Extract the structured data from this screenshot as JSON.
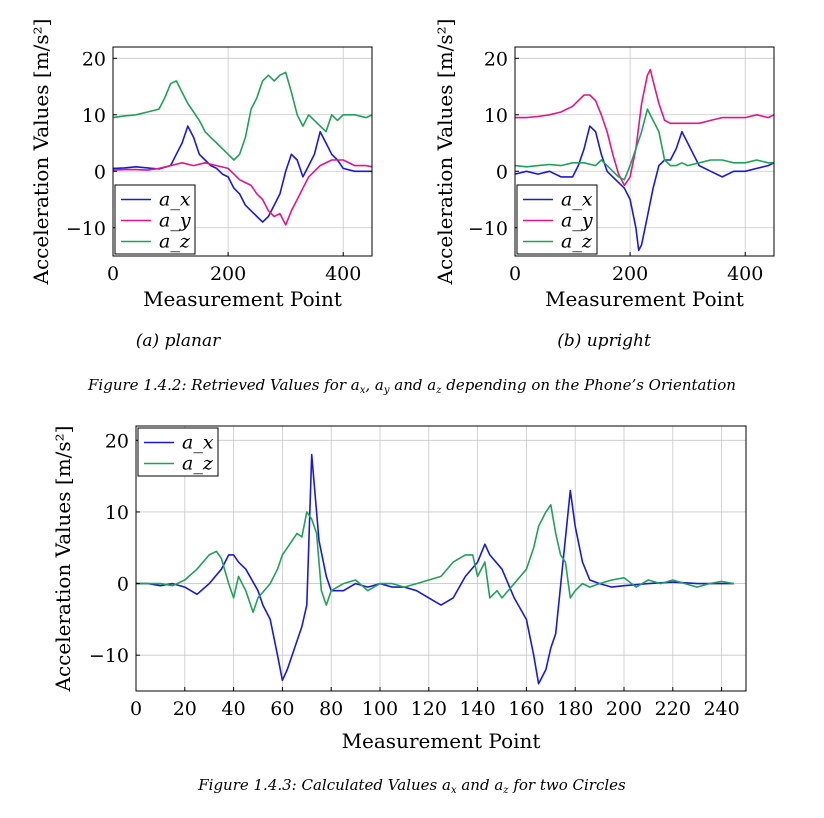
{
  "figures": {
    "fig1_caption_prefix": "Figure 1.4.2: ",
    "fig1_caption_text": "Retrieved Values for a",
    "fig1_caption_full": "Figure 1.4.2: Retrieved Values for a_x, a_y and a_z depending on the Phone's Orientation",
    "fig2_caption_full": "Figure 1.4.3: Calculated Values a_x and a_z for two Circles"
  },
  "colors": {
    "ax": "#1a1ad6",
    "ay": "#e0168a",
    "az": "#21a05a",
    "grid": "#c8c8c8"
  },
  "chart_data": [
    {
      "type": "line",
      "subcaption": "(a) planar",
      "xlabel": "Measurement Point",
      "ylabel": "Acceleration Values [m/s²]",
      "xlim": [
        0,
        450
      ],
      "ylim": [
        -15,
        22
      ],
      "xticks": [
        0,
        200,
        400
      ],
      "yticks": [
        -10,
        0,
        10,
        20
      ],
      "grid": true,
      "legend": "bottom-left",
      "series": [
        {
          "name": "a_x",
          "key": "ax",
          "x": [
            0,
            20,
            40,
            60,
            80,
            100,
            110,
            120,
            130,
            140,
            150,
            160,
            170,
            180,
            190,
            200,
            210,
            220,
            230,
            240,
            250,
            260,
            270,
            280,
            290,
            300,
            310,
            320,
            330,
            340,
            350,
            360,
            370,
            380,
            390,
            400,
            420,
            440,
            450
          ],
          "y": [
            0.5,
            0.6,
            0.8,
            0.6,
            0.4,
            1,
            3,
            5,
            8,
            6,
            3,
            2,
            1,
            0.5,
            -0.5,
            -1,
            -3,
            -4,
            -6,
            -7,
            -8,
            -9,
            -8,
            -6,
            -4,
            0,
            3,
            2,
            -1,
            1,
            3,
            7,
            5,
            3,
            2,
            0.5,
            0,
            0,
            0
          ]
        },
        {
          "name": "a_y",
          "key": "ay",
          "x": [
            0,
            20,
            40,
            60,
            80,
            100,
            120,
            140,
            160,
            180,
            200,
            210,
            220,
            230,
            240,
            250,
            260,
            270,
            280,
            290,
            300,
            310,
            320,
            330,
            340,
            350,
            360,
            380,
            400,
            420,
            440,
            450
          ],
          "y": [
            0.2,
            0.3,
            0.3,
            0.2,
            0.5,
            1,
            1.5,
            1,
            1.5,
            1,
            0.5,
            -0.5,
            -1.5,
            -2,
            -2.5,
            -4,
            -5,
            -7,
            -8,
            -7.5,
            -9.5,
            -7,
            -5,
            -3,
            -1,
            0,
            1,
            2,
            2,
            1,
            1,
            0.8
          ]
        },
        {
          "name": "a_z",
          "key": "az",
          "x": [
            0,
            20,
            40,
            60,
            80,
            90,
            100,
            110,
            120,
            130,
            140,
            150,
            160,
            170,
            180,
            190,
            200,
            210,
            220,
            230,
            240,
            250,
            260,
            270,
            280,
            290,
            300,
            310,
            320,
            330,
            340,
            350,
            360,
            370,
            380,
            390,
            400,
            420,
            440,
            450
          ],
          "y": [
            9.5,
            9.8,
            10,
            10.5,
            11,
            13,
            15.5,
            16,
            14,
            12,
            10.5,
            9,
            7,
            6,
            5,
            4,
            3,
            2,
            3,
            6,
            11,
            13,
            16,
            17,
            16,
            17,
            17.5,
            14,
            10,
            8,
            10,
            9,
            8,
            7,
            10,
            9,
            10,
            10,
            9.5,
            10
          ]
        }
      ]
    },
    {
      "type": "line",
      "subcaption": "(b) upright",
      "xlabel": "Measurement Point",
      "ylabel": "Acceleration Values [m/s²]",
      "xlim": [
        0,
        450
      ],
      "ylim": [
        -15,
        22
      ],
      "xticks": [
        0,
        200,
        400
      ],
      "yticks": [
        -10,
        0,
        10,
        20
      ],
      "grid": true,
      "legend": "bottom-left",
      "series": [
        {
          "name": "a_x",
          "key": "ax",
          "x": [
            0,
            20,
            40,
            60,
            80,
            100,
            110,
            120,
            130,
            140,
            150,
            160,
            170,
            180,
            190,
            200,
            210,
            215,
            220,
            230,
            240,
            250,
            260,
            270,
            280,
            290,
            300,
            310,
            320,
            340,
            360,
            380,
            400,
            420,
            440,
            450
          ],
          "y": [
            -0.5,
            0,
            -0.5,
            0,
            -1,
            -1,
            1,
            4,
            8,
            7,
            3,
            0,
            -1,
            -2,
            -3,
            -5,
            -10,
            -14,
            -13,
            -8,
            -3,
            1,
            2,
            2,
            4,
            7,
            5,
            3,
            1,
            0,
            -1,
            0,
            0,
            0.5,
            1,
            1.5
          ]
        },
        {
          "name": "a_y",
          "key": "ay",
          "x": [
            0,
            20,
            40,
            60,
            80,
            100,
            110,
            120,
            130,
            140,
            150,
            160,
            170,
            180,
            190,
            200,
            210,
            220,
            230,
            235,
            240,
            250,
            260,
            270,
            280,
            290,
            300,
            320,
            340,
            360,
            380,
            400,
            420,
            440,
            450
          ],
          "y": [
            9.5,
            9.5,
            9.7,
            10,
            10.5,
            11.5,
            12.5,
            13.5,
            13.5,
            12.5,
            10,
            7,
            3,
            -0.5,
            -2.5,
            -1,
            4,
            12,
            17,
            18,
            16,
            12,
            9,
            8.5,
            8.5,
            8.5,
            8.5,
            8.5,
            9,
            9.5,
            9.5,
            9.5,
            10,
            9.5,
            10
          ]
        },
        {
          "name": "a_z",
          "key": "az",
          "x": [
            0,
            20,
            40,
            60,
            80,
            100,
            120,
            140,
            150,
            160,
            170,
            180,
            190,
            200,
            210,
            220,
            230,
            240,
            250,
            260,
            270,
            280,
            290,
            300,
            320,
            340,
            360,
            380,
            400,
            420,
            440,
            450
          ],
          "y": [
            1,
            0.8,
            1,
            1.2,
            1,
            1.5,
            1.5,
            1,
            2,
            1,
            0,
            -1,
            -1.5,
            1,
            4,
            7,
            11,
            9,
            7,
            2,
            1,
            1,
            1.5,
            1,
            1.5,
            2,
            2,
            1.5,
            1.5,
            2,
            1.5,
            1.5
          ]
        }
      ]
    },
    {
      "type": "line",
      "xlabel": "Measurement Point",
      "ylabel": "Acceleration Values [m/s²]",
      "xlim": [
        0,
        250
      ],
      "ylim": [
        -15,
        22
      ],
      "xticks": [
        0,
        20,
        40,
        60,
        80,
        100,
        120,
        140,
        160,
        180,
        200,
        220,
        240
      ],
      "yticks": [
        -10,
        0,
        10,
        20
      ],
      "grid": true,
      "legend": "top-left",
      "series": [
        {
          "name": "a_x",
          "key": "ax",
          "x": [
            0,
            5,
            10,
            15,
            20,
            25,
            30,
            35,
            38,
            40,
            42,
            45,
            50,
            52,
            55,
            58,
            60,
            62,
            65,
            68,
            70,
            72,
            75,
            78,
            80,
            85,
            90,
            95,
            100,
            105,
            110,
            115,
            120,
            125,
            130,
            135,
            140,
            143,
            145,
            150,
            155,
            160,
            163,
            165,
            168,
            170,
            172,
            175,
            178,
            180,
            183,
            186,
            190,
            195,
            200,
            210,
            220,
            230,
            240,
            245
          ],
          "y": [
            0,
            0,
            -0.3,
            0,
            -0.5,
            -1.5,
            0,
            2,
            4,
            4,
            3,
            2,
            -1,
            -3,
            -5,
            -10,
            -13.5,
            -12,
            -9,
            -6,
            -3,
            18,
            6,
            1,
            -1,
            -1,
            0,
            -0.5,
            0,
            -0.5,
            -0.5,
            -1,
            -2,
            -3,
            -2,
            1,
            3,
            5.5,
            4,
            2,
            -2,
            -5,
            -10,
            -14,
            -12,
            -9,
            -7,
            3,
            13,
            8,
            3,
            0.5,
            0,
            -0.5,
            -0.3,
            0,
            0.2,
            0,
            0,
            0
          ]
        },
        {
          "name": "a_z",
          "key": "az",
          "x": [
            0,
            5,
            10,
            15,
            20,
            25,
            30,
            33,
            35,
            38,
            40,
            42,
            45,
            48,
            50,
            55,
            58,
            60,
            62,
            64,
            66,
            68,
            70,
            72,
            74,
            76,
            78,
            80,
            85,
            90,
            95,
            100,
            105,
            110,
            115,
            120,
            125,
            130,
            135,
            138,
            140,
            143,
            145,
            148,
            150,
            155,
            160,
            163,
            165,
            168,
            170,
            172,
            174,
            176,
            178,
            180,
            183,
            186,
            190,
            195,
            200,
            205,
            210,
            215,
            220,
            225,
            230,
            235,
            240,
            245
          ],
          "y": [
            0,
            0,
            0,
            -0.3,
            0.5,
            2,
            4,
            4.5,
            3.5,
            0,
            -2,
            1,
            -1,
            -4,
            -2,
            0,
            2,
            4,
            5,
            6,
            7,
            6.5,
            10,
            9,
            7,
            -1,
            -3,
            -1,
            0,
            0.5,
            -1,
            0,
            0,
            -0.5,
            0,
            0.5,
            1,
            3,
            4,
            4,
            1,
            3,
            -2,
            -1,
            -2,
            0,
            2,
            5,
            8,
            10,
            11,
            7,
            4,
            3,
            -2,
            -1,
            0,
            -0.5,
            0,
            0.5,
            0.8,
            -0.5,
            0.5,
            0,
            0.5,
            0,
            -0.5,
            0,
            0.3,
            0
          ]
        }
      ]
    }
  ]
}
